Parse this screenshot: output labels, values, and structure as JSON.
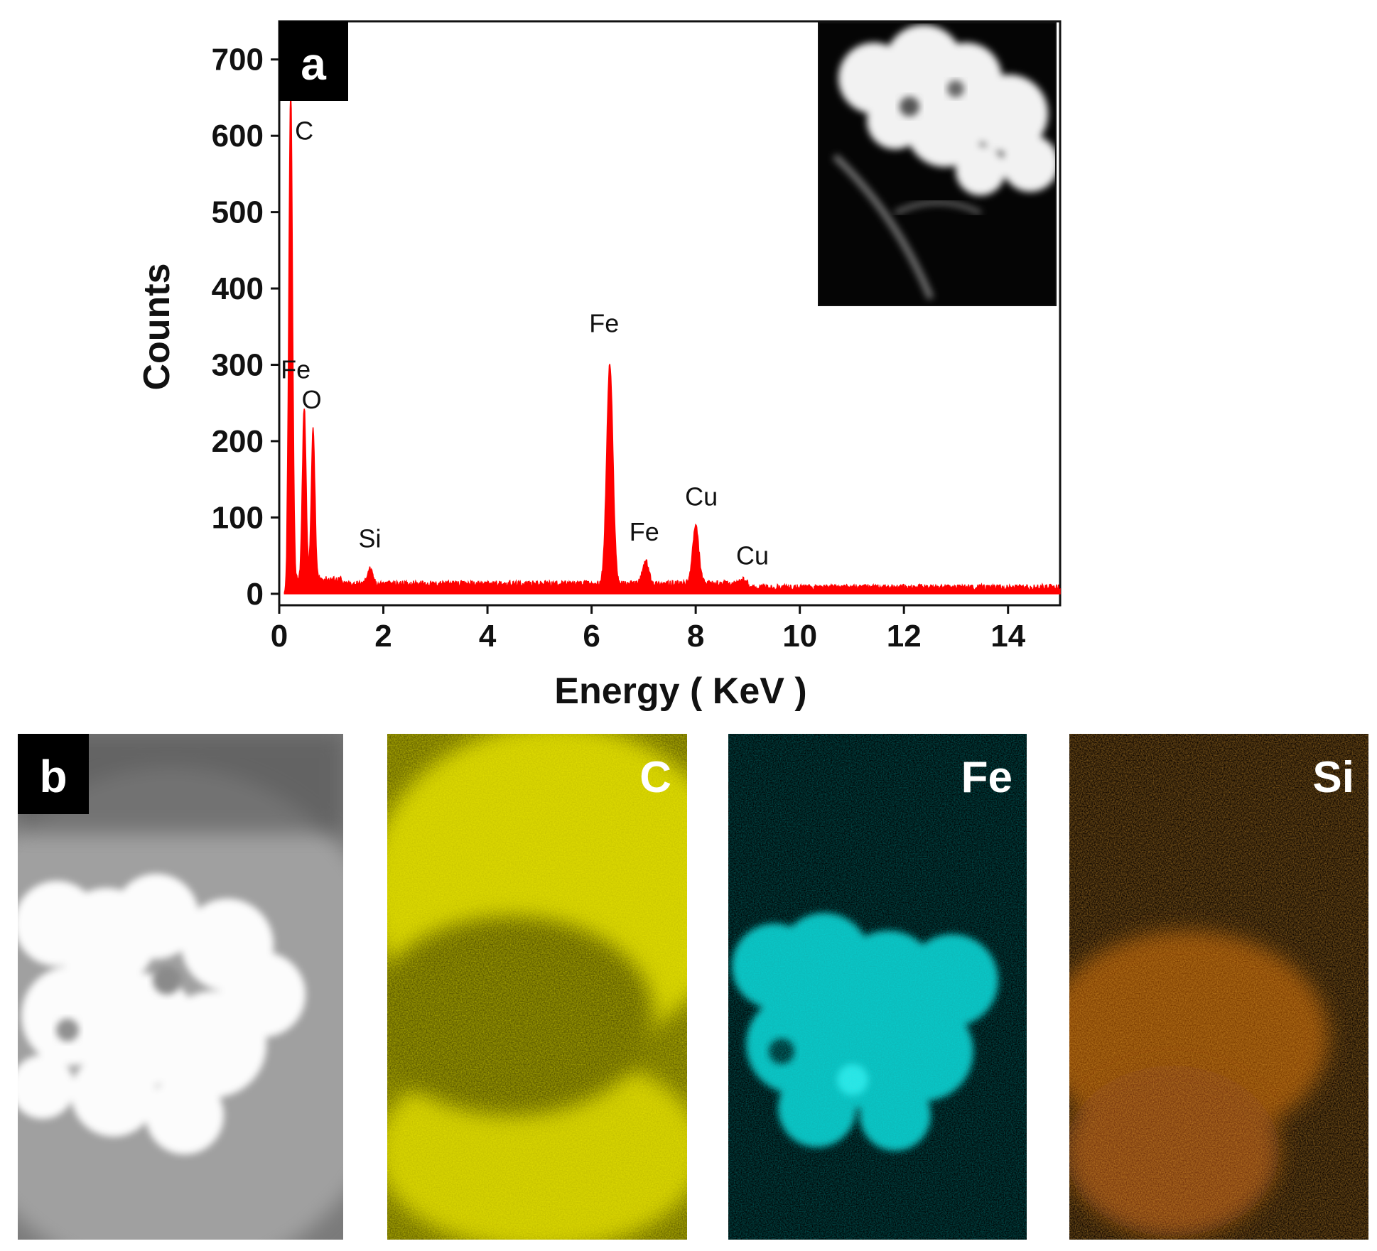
{
  "chart_data": {
    "type": "line",
    "panel_label": "a",
    "xlabel": "Energy ( KeV )",
    "ylabel": "Counts",
    "xlim": [
      0,
      15
    ],
    "ylim": [
      -15,
      750
    ],
    "xticks": [
      0,
      2,
      4,
      6,
      8,
      10,
      12,
      14
    ],
    "yticks": [
      0,
      100,
      200,
      300,
      400,
      500,
      600,
      700
    ],
    "series_color": "#ff0000",
    "grid": false,
    "baseline_counts": 12,
    "peaks": [
      {
        "element": "C",
        "energy": 0.22,
        "counts": 660
      },
      {
        "element": "Fe",
        "energy": 0.48,
        "counts": 245
      },
      {
        "element": "O",
        "energy": 0.65,
        "counts": 215
      },
      {
        "element": "Si",
        "energy": 1.74,
        "counts": 33
      },
      {
        "element": "Fe",
        "energy": 6.35,
        "counts": 300
      },
      {
        "element": "Fe",
        "energy": 7.04,
        "counts": 42
      },
      {
        "element": "Cu",
        "energy": 8.0,
        "counts": 88
      },
      {
        "element": "Cu",
        "energy": 8.9,
        "counts": 18
      }
    ],
    "inset": "electron micrograph of analysed particle cluster"
  },
  "maps": {
    "panel_label": "b",
    "panels": [
      {
        "label": "",
        "kind": "haadf"
      },
      {
        "label": "C",
        "kind": "element",
        "color": "#e6e000"
      },
      {
        "label": "Fe",
        "kind": "element",
        "color": "#00d8d8"
      },
      {
        "label": "Si",
        "kind": "element",
        "color": "#e8720c"
      }
    ]
  }
}
